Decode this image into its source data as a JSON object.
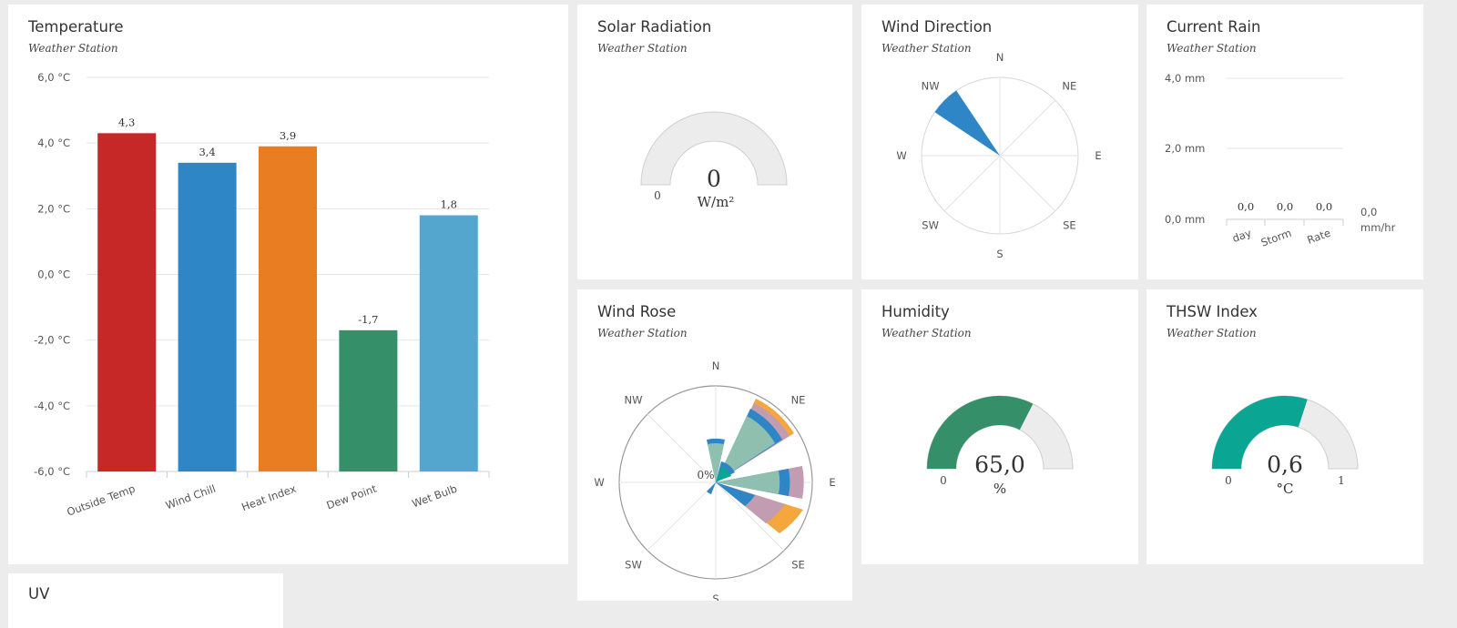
{
  "colors": {
    "red": "#c62828",
    "blue": "#2e86c6",
    "orange": "#e87d22",
    "green": "#35906a",
    "light_blue": "#55a6cf",
    "teal": "#0aa693",
    "gauge_bg": "#ececec"
  },
  "temperature": {
    "title": "Temperature",
    "subtitle": "Weather Station",
    "chart_data": {
      "type": "bar",
      "categories": [
        "Outside Temp",
        "Wind Chill",
        "Heat Index",
        "Dew Point",
        "Wet Bulb"
      ],
      "values": [
        4.3,
        3.4,
        3.9,
        -1.7,
        1.8
      ],
      "value_labels": [
        "4,3",
        "3,4",
        "3,9",
        "-1,7",
        "1,8"
      ],
      "ylim": [
        -6,
        6
      ],
      "yticks": [
        6,
        4,
        2,
        0,
        -2,
        -4,
        -6
      ],
      "ytick_labels": [
        "6,0 °C",
        "4,0 °C",
        "2,0 °C",
        "0,0 °C",
        "-2,0 °C",
        "-4,0 °C",
        "-6,0 °C"
      ],
      "colors": [
        "#c62828",
        "#2e86c6",
        "#e87d22",
        "#35906a",
        "#55a6cf"
      ],
      "grid": true
    }
  },
  "solar": {
    "title": "Solar Radiation",
    "subtitle": "Weather Station",
    "chart_data": {
      "type": "gauge",
      "value": 0,
      "value_label": "0",
      "unit": "W/m²",
      "min_label": "0"
    }
  },
  "wind_direction": {
    "title": "Wind Direction",
    "subtitle": "Weather Station",
    "directions": [
      "N",
      "NE",
      "E",
      "SE",
      "S",
      "SW",
      "W",
      "NW"
    ],
    "chart_data": {
      "type": "polar",
      "highlighted": "NW",
      "color": "#2e86c6"
    }
  },
  "rain": {
    "title": "Current Rain",
    "subtitle": "Weather Station",
    "chart_data": {
      "type": "bar",
      "categories": [
        "day",
        "Storm",
        "Rate"
      ],
      "values": [
        0.0,
        0.0,
        0.0
      ],
      "value_labels": [
        "0,0",
        "0,0",
        "0,0"
      ],
      "ylim": [
        0,
        4
      ],
      "ytick_labels": [
        "4,0 mm",
        "2,0 mm",
        "0,0 mm"
      ],
      "rate_value": "0,0",
      "rate_unit": "mm/hr"
    }
  },
  "wind_rose": {
    "title": "Wind Rose",
    "subtitle": "Weather Station",
    "center_label": "0%",
    "directions": [
      "N",
      "NE",
      "E",
      "SE",
      "S",
      "SW",
      "W",
      "NW"
    ],
    "chart_data": {
      "type": "wind-rose",
      "series_colors": [
        "#0aa693",
        "#2e86c6",
        "#8fbfae",
        "#c29cb0",
        "#f5a73e"
      ]
    }
  },
  "humidity": {
    "title": "Humidity",
    "subtitle": "Weather Station",
    "chart_data": {
      "type": "gauge",
      "value": 65.0,
      "max": 100,
      "value_label": "65,0",
      "unit": "%",
      "min_label": "0",
      "color": "#35906a"
    }
  },
  "thsw": {
    "title": "THSW Index",
    "subtitle": "Weather Station",
    "chart_data": {
      "type": "gauge",
      "value": 0.6,
      "max": 1,
      "value_label": "0,6",
      "unit": "°C",
      "min_label": "0",
      "max_label": "1",
      "color": "#0aa693"
    }
  },
  "uv": {
    "title": "UV"
  }
}
